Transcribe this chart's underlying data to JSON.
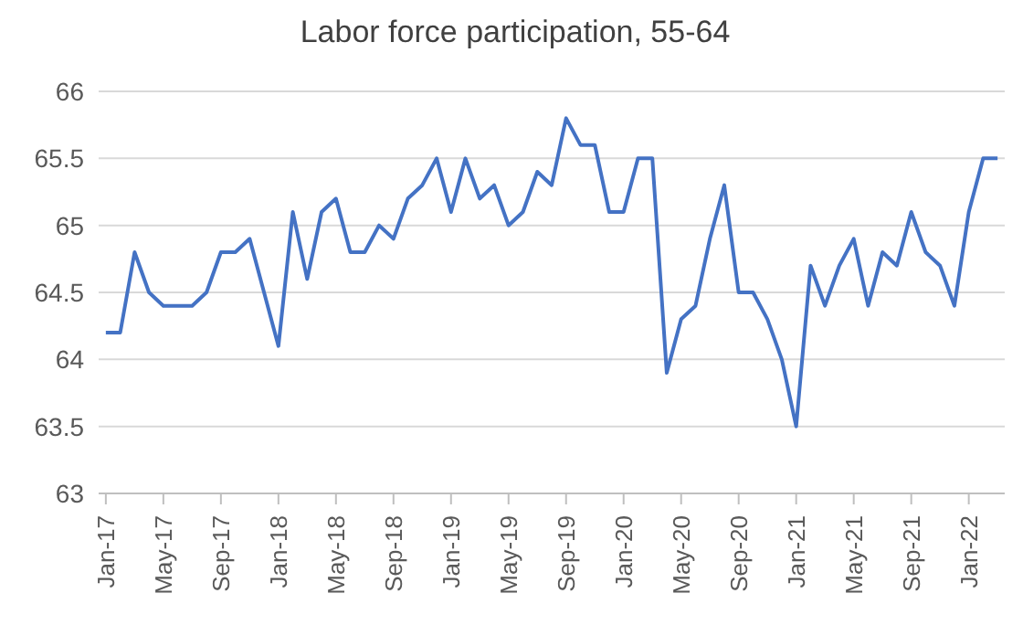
{
  "chart_data": {
    "type": "line",
    "title": "Labor force participation, 55-64",
    "categories": [
      "Jan-17",
      null,
      null,
      null,
      "May-17",
      null,
      null,
      null,
      "Sep-17",
      null,
      null,
      null,
      "Jan-18",
      null,
      null,
      null,
      "May-18",
      null,
      null,
      null,
      "Sep-18",
      null,
      null,
      null,
      "Jan-19",
      null,
      null,
      null,
      "May-19",
      null,
      null,
      null,
      "Sep-19",
      null,
      null,
      null,
      "Jan-20",
      null,
      null,
      null,
      "May-20",
      null,
      null,
      null,
      "Sep-20",
      null,
      null,
      null,
      "Jan-21",
      null,
      null,
      null,
      "May-21",
      null,
      null,
      null,
      "Sep-21",
      null,
      null,
      null,
      "Jan-22",
      null,
      null
    ],
    "series": [
      {
        "color": "#4472c4",
        "values": [
          64.2,
          64.2,
          64.8,
          64.5,
          64.4,
          64.4,
          64.4,
          64.5,
          64.8,
          64.8,
          64.9,
          64.5,
          64.1,
          65.1,
          64.6,
          65.1,
          65.2,
          64.8,
          64.8,
          65.0,
          64.9,
          65.2,
          65.3,
          65.5,
          65.1,
          65.5,
          65.2,
          65.3,
          65.0,
          65.1,
          65.4,
          65.3,
          65.8,
          65.6,
          65.6,
          65.1,
          65.1,
          65.5,
          65.5,
          63.9,
          64.3,
          64.4,
          64.9,
          65.3,
          64.5,
          64.5,
          64.3,
          64.0,
          63.5,
          64.7,
          64.4,
          64.7,
          64.9,
          64.4,
          64.8,
          64.7,
          65.1,
          64.8,
          64.7,
          64.4,
          65.1,
          65.5,
          65.5
        ]
      }
    ],
    "ylim": [
      63,
      66
    ],
    "yticks": [
      63,
      63.5,
      64,
      64.5,
      65,
      65.5,
      66
    ],
    "grid": "y",
    "marker": "none",
    "line_style": "solid"
  }
}
